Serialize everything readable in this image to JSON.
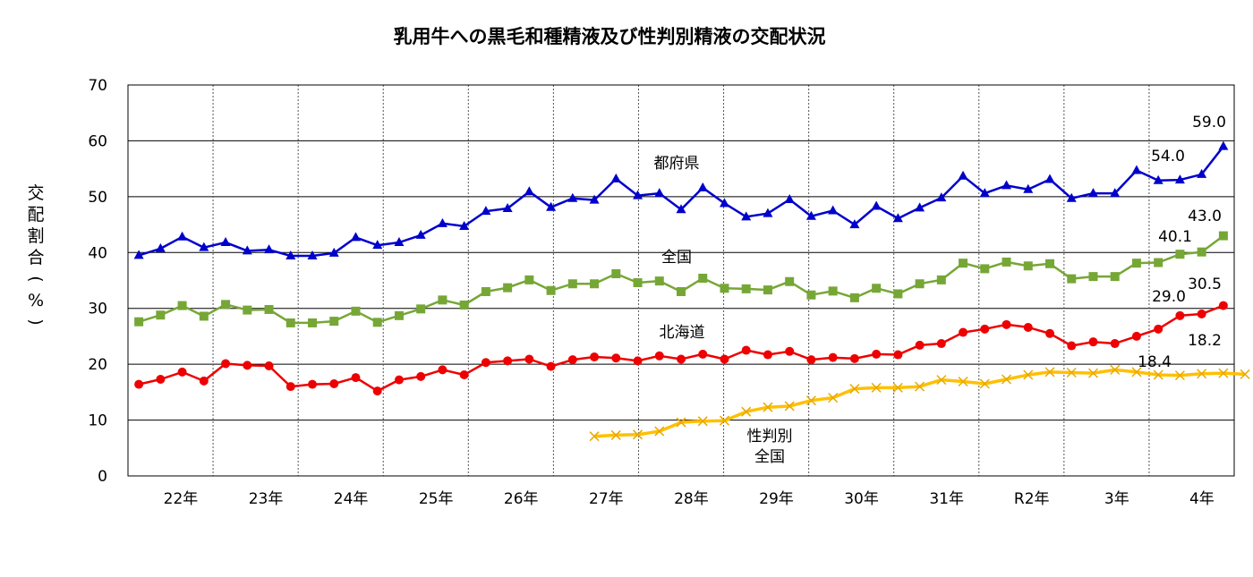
{
  "chart_data": {
    "type": "line",
    "title": "乳用牛への黒毛和種精液及び性判別精液の交配状況",
    "ylabel": "交配割合(%)",
    "ylim": [
      0,
      70
    ],
    "yticks": [
      0,
      10,
      20,
      30,
      40,
      50,
      60,
      70
    ],
    "grid": true,
    "year_labels": [
      "22年",
      "23年",
      "24年",
      "25年",
      "26年",
      "27年",
      "28年",
      "29年",
      "30年",
      "31年",
      "R2年",
      "3年",
      "4年"
    ],
    "series": [
      {
        "name": "都府県",
        "color": "#0000CC",
        "marker": "triangle",
        "start_index": 0,
        "values": [
          39.5,
          40.7,
          42.8,
          40.9,
          41.8,
          40.3,
          40.5,
          39.4,
          39.4,
          39.9,
          42.7,
          41.3,
          41.8,
          43.1,
          45.2,
          44.7,
          47.4,
          47.9,
          50.9,
          48.1,
          49.7,
          49.4,
          53.2,
          50.2,
          50.6,
          47.7,
          51.6,
          48.8,
          46.4,
          47.0,
          49.5,
          46.5,
          47.5,
          45.0,
          48.3,
          46.1,
          48.0,
          49.8,
          53.7,
          50.6,
          52.0,
          51.3,
          53.1,
          49.7,
          50.6,
          50.6,
          54.7,
          52.9,
          53.0,
          54.0,
          59.0
        ]
      },
      {
        "name": "全国",
        "color": "#76A736",
        "marker": "square",
        "start_index": 0,
        "values": [
          27.6,
          28.8,
          30.5,
          28.6,
          30.7,
          29.7,
          29.8,
          27.4,
          27.4,
          27.7,
          29.5,
          27.5,
          28.7,
          29.9,
          31.5,
          30.6,
          33.0,
          33.7,
          35.1,
          33.2,
          34.4,
          34.4,
          36.2,
          34.6,
          34.9,
          33.0,
          35.4,
          33.6,
          33.5,
          33.3,
          34.8,
          32.4,
          33.1,
          31.9,
          33.6,
          32.6,
          34.4,
          35.1,
          38.1,
          37.1,
          38.3,
          37.6,
          38.0,
          35.3,
          35.7,
          35.7,
          38.1,
          38.2,
          39.7,
          40.1,
          43.0
        ]
      },
      {
        "name": "北海道",
        "color": "#EE0000",
        "marker": "circle",
        "start_index": 0,
        "values": [
          16.4,
          17.3,
          18.6,
          17.0,
          20.1,
          19.8,
          19.7,
          16.0,
          16.4,
          16.5,
          17.6,
          15.2,
          17.2,
          17.8,
          19.0,
          18.1,
          20.3,
          20.6,
          20.9,
          19.6,
          20.8,
          21.3,
          21.1,
          20.6,
          21.5,
          20.9,
          21.8,
          20.9,
          22.5,
          21.7,
          22.3,
          20.8,
          21.2,
          21.0,
          21.8,
          21.7,
          23.4,
          23.7,
          25.7,
          26.3,
          27.1,
          26.6,
          25.5,
          23.3,
          24.0,
          23.7,
          25.0,
          26.3,
          28.7,
          29.0,
          30.5
        ]
      },
      {
        "name": "性判別全国",
        "color": "#FFC000",
        "marker": "x",
        "start_index": 21,
        "values": [
          7.1,
          7.3,
          7.4,
          8.0,
          9.6,
          9.8,
          9.9,
          11.5,
          12.3,
          12.5,
          13.5,
          14.0,
          15.6,
          15.8,
          15.8,
          16.0,
          17.2,
          16.9,
          16.5,
          17.3,
          18.1,
          18.6,
          18.5,
          18.4,
          19.0,
          18.6,
          18.1,
          18.0,
          18.3,
          18.4,
          18.2
        ]
      }
    ]
  },
  "annotations": {
    "tofuken_label": "都府県",
    "zenkoku_label": "全国",
    "hokkaido_label": "北海道",
    "sexed_label_line1": "性判別",
    "sexed_label_line2": "全国",
    "v_59": "59.0",
    "v_54": "54.0",
    "v_43": "43.0",
    "v_401": "40.1",
    "v_305": "30.5",
    "v_29": "29.0",
    "v_184": "18.4",
    "v_182": "18.2"
  }
}
